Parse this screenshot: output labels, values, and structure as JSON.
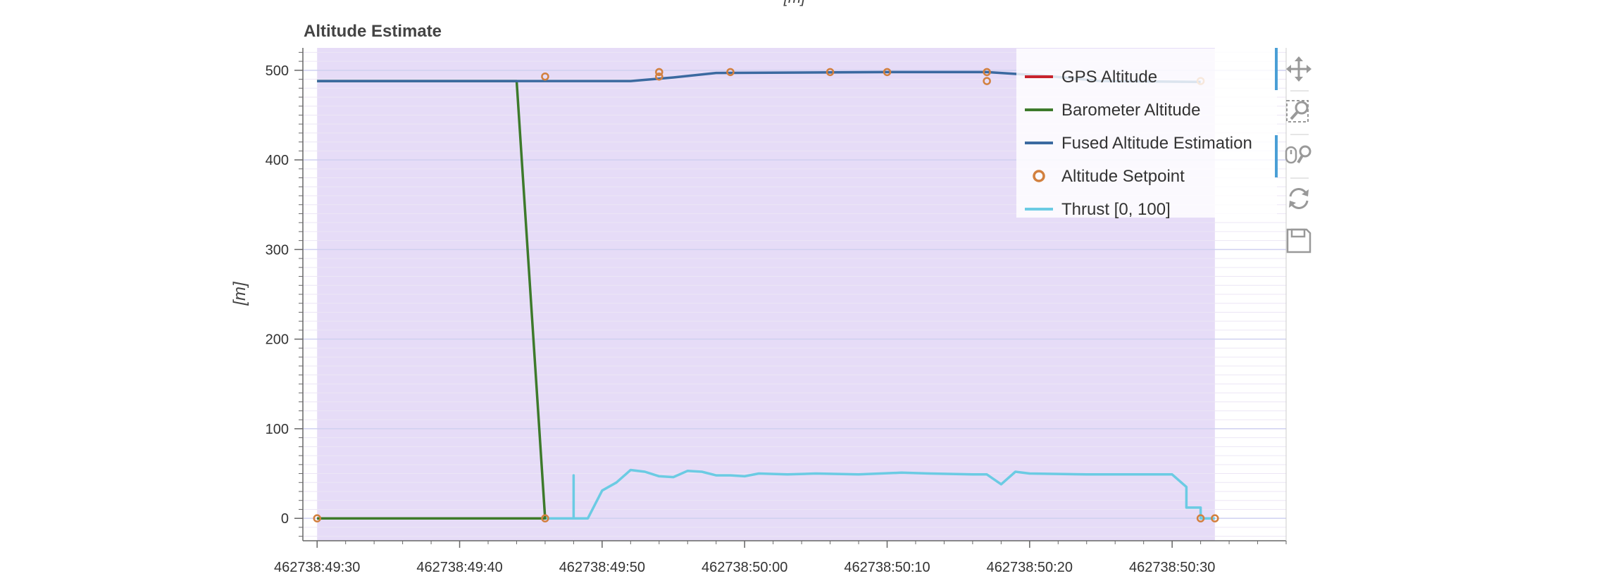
{
  "colors": {
    "gps": "#c8232c",
    "baro": "#3d7a2b",
    "fused": "#3b6aa0",
    "setpoint": "#d2803e",
    "thrust": "#6bcbe3",
    "shade": "#e6dcf7",
    "grid": "#cfd0f0",
    "axis": "#666666"
  },
  "toolbar": {
    "pan": "pan-tool",
    "box_zoom": "box-zoom-tool",
    "wheel_zoom": "wheel-zoom-tool",
    "reset": "reset-tool",
    "save": "save-tool"
  },
  "chart_data": {
    "type": "line",
    "title": "Altitude Estimate",
    "top_label": "[m]",
    "xlabel": "",
    "ylabel": "[m]",
    "ylim": [
      -25,
      525
    ],
    "xlim": [
      "462738:49:29",
      "462738:50:38"
    ],
    "yticks": [
      0,
      100,
      200,
      300,
      400,
      500
    ],
    "xticks": [
      "462738:49:30",
      "462738:49:40",
      "462738:49:50",
      "462738:50:00",
      "462738:50:10",
      "462738:50:20",
      "462738:50:30"
    ],
    "grid": true,
    "legend_position": "top-right",
    "shaded_region": [
      "462738:49:30",
      "462738:50:33"
    ],
    "series": [
      {
        "name": "GPS Altitude",
        "kind": "line",
        "points": [
          [
            "462738:49:30",
            0
          ],
          [
            "462738:49:46",
            0
          ]
        ]
      },
      {
        "name": "Barometer Altitude",
        "kind": "line",
        "points": [
          [
            "462738:49:30",
            488
          ],
          [
            "462738:49:44",
            488
          ],
          [
            "462738:49:46",
            0
          ],
          [
            "462738:49:30",
            0
          ]
        ]
      },
      {
        "name": "Fused Altitude Estimation",
        "kind": "line",
        "points": [
          [
            "462738:49:30",
            488
          ],
          [
            "462738:49:52",
            488
          ],
          [
            "462738:49:55",
            492
          ],
          [
            "462738:49:58",
            497
          ],
          [
            "462738:50:10",
            498
          ],
          [
            "462738:50:17",
            498
          ],
          [
            "462738:50:21",
            494
          ],
          [
            "462738:50:25",
            488
          ],
          [
            "462738:50:32",
            487
          ]
        ]
      },
      {
        "name": "Altitude Setpoint",
        "kind": "scatter",
        "points": [
          [
            "462738:49:30",
            0
          ],
          [
            "462738:49:46",
            0
          ],
          [
            "462738:49:46",
            493
          ],
          [
            "462738:49:54",
            498
          ],
          [
            "462738:49:54",
            493
          ],
          [
            "462738:49:59",
            498
          ],
          [
            "462738:50:06",
            498
          ],
          [
            "462738:50:10",
            498
          ],
          [
            "462738:50:17",
            498
          ],
          [
            "462738:50:17",
            488
          ],
          [
            "462738:50:32",
            488
          ],
          [
            "462738:50:32",
            0
          ],
          [
            "462738:50:33",
            0
          ]
        ]
      },
      {
        "name": "Thrust [0, 100]",
        "kind": "line",
        "points": [
          [
            "462738:49:46",
            0
          ],
          [
            "462738:49:48",
            0
          ],
          [
            "462738:49:48",
            48
          ],
          [
            "462738:49:48",
            0
          ],
          [
            "462738:49:49",
            0
          ],
          [
            "462738:49:50",
            31
          ],
          [
            "462738:49:51",
            40
          ],
          [
            "462738:49:52",
            54
          ],
          [
            "462738:49:53",
            52
          ],
          [
            "462738:49:54",
            47
          ],
          [
            "462738:49:55",
            46
          ],
          [
            "462738:49:56",
            53
          ],
          [
            "462738:49:57",
            52
          ],
          [
            "462738:49:58",
            48
          ],
          [
            "462738:49:59",
            48
          ],
          [
            "462738:50:00",
            47
          ],
          [
            "462738:50:01",
            50
          ],
          [
            "462738:50:03",
            49
          ],
          [
            "462738:50:05",
            50
          ],
          [
            "462738:50:08",
            49
          ],
          [
            "462738:50:11",
            51
          ],
          [
            "462738:50:13",
            50
          ],
          [
            "462738:50:16",
            49
          ],
          [
            "462738:50:17",
            49
          ],
          [
            "462738:50:18",
            38
          ],
          [
            "462738:50:19",
            52
          ],
          [
            "462738:50:20",
            50
          ],
          [
            "462738:50:24",
            49
          ],
          [
            "462738:50:30",
            49
          ],
          [
            "462738:50:31",
            35
          ],
          [
            "462738:50:31",
            12
          ],
          [
            "462738:50:32",
            12
          ],
          [
            "462738:50:32",
            0
          ],
          [
            "462738:50:33",
            0
          ]
        ]
      }
    ]
  }
}
